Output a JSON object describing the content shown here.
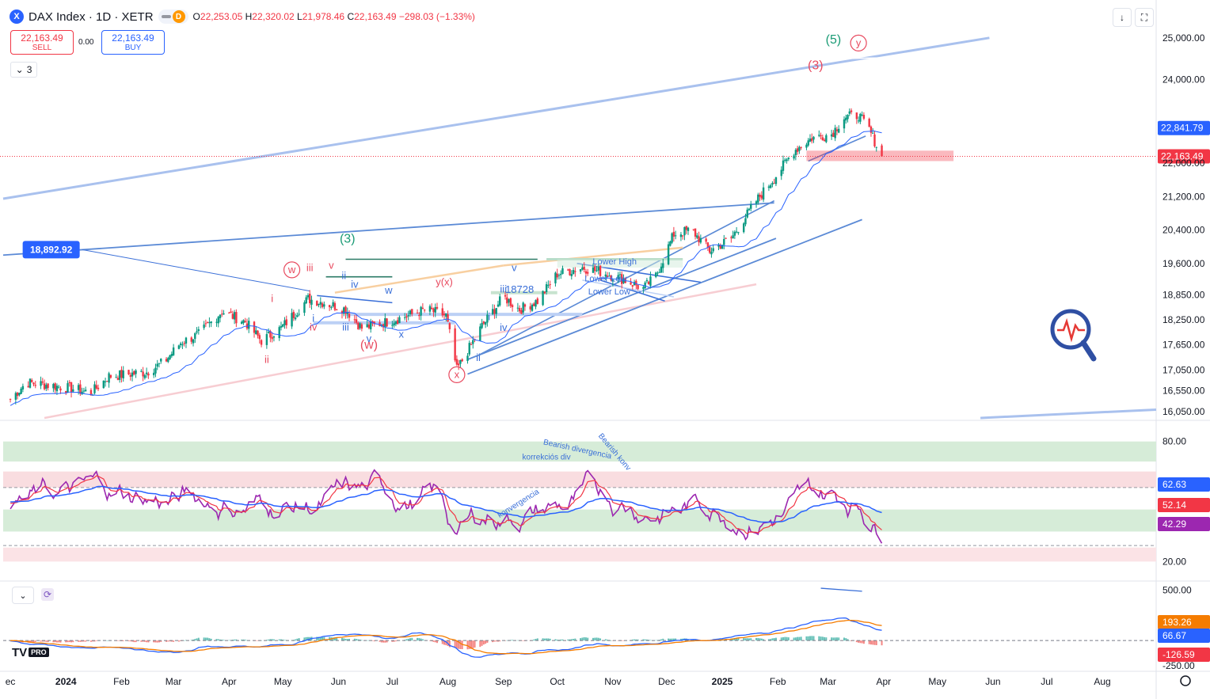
{
  "header": {
    "logo_letter": "X",
    "title": "DAX Index · 1D · XETR",
    "badge_letter": "D",
    "open_key": "O",
    "open": "22,253.05",
    "high_key": "H",
    "high": "22,320.02",
    "low_key": "L",
    "low": "21,978.46",
    "close_key": "C",
    "close": "22,163.49",
    "change": "−298.03 (−1.33%)"
  },
  "trade": {
    "sell_price": "22,163.49",
    "sell_label": "SELL",
    "spread": "0.00",
    "buy_price": "22,163.49",
    "buy_label": "BUY"
  },
  "indicator_count": "3",
  "colors": {
    "up": "#089981",
    "down": "#f23645",
    "channel": "#5b8ad6",
    "rsi": "#9c27b0",
    "rsi_ma": "#f23645",
    "macd_line": "#2962ff",
    "macd_signal": "#f57c00",
    "wave_red": "#e84a5f",
    "wave_green": "#1a9b75",
    "wave_blue": "#3a6fd8"
  },
  "chart_data": [
    {
      "type": "line",
      "series_style": "candlestick",
      "x_ticks": [
        "ec",
        "2024",
        "Feb",
        "Mar",
        "Apr",
        "May",
        "Jun",
        "Jul",
        "Aug",
        "Sep",
        "Oct",
        "Nov",
        "Dec",
        "2025",
        "Feb",
        "Mar",
        "Apr",
        "May",
        "Jun",
        "Jul",
        "Aug"
      ],
      "y_ticks": [
        "25,000.00",
        "24,000.00",
        "22,000.00",
        "21,200.00",
        "20,400.00",
        "19,600.00",
        "18,850.00",
        "18,250.00",
        "17,650.00",
        "17,050.00",
        "16,550.00",
        "16,050.00"
      ],
      "ylim": [
        15900,
        25300
      ],
      "price_path": [
        [
          "2023-12-01",
          16350
        ],
        [
          "2023-12-10",
          16750
        ],
        [
          "2023-12-20",
          16700
        ],
        [
          "2024-01-05",
          16600
        ],
        [
          "2024-01-15",
          16500
        ],
        [
          "2024-01-25",
          16900
        ],
        [
          "2024-02-05",
          16950
        ],
        [
          "2024-02-15",
          17000
        ],
        [
          "2024-02-25",
          17250
        ],
        [
          "2024-03-05",
          17700
        ],
        [
          "2024-03-15",
          17900
        ],
        [
          "2024-03-28",
          18450
        ],
        [
          "2024-04-10",
          18200
        ],
        [
          "2024-04-19",
          17750
        ],
        [
          "2024-04-30",
          18050
        ],
        [
          "2024-05-15",
          18750
        ],
        [
          "2024-05-25",
          18650
        ],
        [
          "2024-06-05",
          18500
        ],
        [
          "2024-06-14",
          18050
        ],
        [
          "2024-06-28",
          18200
        ],
        [
          "2024-07-10",
          18350
        ],
        [
          "2024-07-20",
          18500
        ],
        [
          "2024-07-31",
          18350
        ],
        [
          "2024-08-06",
          17050
        ],
        [
          "2024-08-20",
          18100
        ],
        [
          "2024-09-01",
          18800
        ],
        [
          "2024-09-10",
          18500
        ],
        [
          "2024-09-20",
          18700
        ],
        [
          "2024-10-01",
          19350
        ],
        [
          "2024-10-15",
          19500
        ],
        [
          "2024-10-25",
          19400
        ],
        [
          "2024-11-05",
          19250
        ],
        [
          "2024-11-18",
          19000
        ],
        [
          "2024-11-25",
          19300
        ],
        [
          "2024-12-05",
          20300
        ],
        [
          "2024-12-15",
          20400
        ],
        [
          "2024-12-25",
          19900
        ],
        [
          "2025-01-06",
          20200
        ],
        [
          "2025-01-20",
          21100
        ],
        [
          "2025-01-31",
          21700
        ],
        [
          "2025-02-10",
          22300
        ],
        [
          "2025-02-20",
          22600
        ],
        [
          "2025-03-03",
          22700
        ],
        [
          "2025-03-10",
          23100
        ],
        [
          "2025-03-18",
          23150
        ],
        [
          "2025-03-24",
          22800
        ],
        [
          "2025-03-31",
          22163
        ]
      ],
      "annotations": [
        {
          "text": "(5)",
          "date": "2025-03-04",
          "price": 24860,
          "color": "green"
        },
        {
          "text": "y",
          "date": "2025-03-18",
          "price": 24800,
          "color": "red",
          "circle": true
        },
        {
          "text": "(3)",
          "date": "2025-02-22",
          "price": 24250,
          "color": "red"
        },
        {
          "text": "(3)",
          "date": "2024-06-06",
          "price": 20100,
          "color": "green"
        },
        {
          "text": "w",
          "date": "2024-05-06",
          "price": 19370,
          "color": "red",
          "circle": true
        },
        {
          "text": "iii",
          "date": "2024-05-16",
          "price": 19420,
          "color": "red"
        },
        {
          "text": "v",
          "date": "2024-05-28",
          "price": 19470,
          "color": "red"
        },
        {
          "text": "ii",
          "date": "2024-06-04",
          "price": 19230,
          "color": "blue"
        },
        {
          "text": "iv",
          "date": "2024-06-10",
          "price": 19020,
          "color": "blue"
        },
        {
          "text": "w",
          "date": "2024-06-29",
          "price": 18880,
          "color": "blue"
        },
        {
          "text": "y(x)",
          "date": "2024-07-30",
          "price": 19070,
          "color": "red"
        },
        {
          "text": "v",
          "date": "2024-09-07",
          "price": 19420,
          "color": "blue"
        },
        {
          "text": "iii",
          "date": "2024-09-01",
          "price": 18900,
          "color": "blue"
        },
        {
          "text": "i",
          "date": "2024-04-25",
          "price": 18680,
          "color": "red"
        },
        {
          "text": "i",
          "date": "2024-05-18",
          "price": 18200,
          "color": "blue"
        },
        {
          "text": "iv",
          "date": "2024-05-18",
          "price": 17990,
          "color": "red"
        },
        {
          "text": "iii",
          "date": "2024-06-05",
          "price": 17990,
          "color": "blue"
        },
        {
          "text": "v",
          "date": "2024-06-18",
          "price": 17720,
          "color": "blue"
        },
        {
          "text": "(w)",
          "date": "2024-06-18",
          "price": 17560,
          "color": "red"
        },
        {
          "text": "x",
          "date": "2024-07-06",
          "price": 17820,
          "color": "blue"
        },
        {
          "text": "ii",
          "date": "2024-04-22",
          "price": 17220,
          "color": "red"
        },
        {
          "text": "i",
          "date": "2024-08-24",
          "price": 18240,
          "color": "blue"
        },
        {
          "text": "iv",
          "date": "2024-09-01",
          "price": 17980,
          "color": "blue"
        },
        {
          "text": "ii",
          "date": "2024-08-18",
          "price": 17260,
          "color": "blue"
        },
        {
          "text": "x",
          "date": "2024-08-06",
          "price": 16860,
          "color": "red",
          "circle": true
        },
        {
          "text": "18728",
          "date": "2024-09-10",
          "price": 18890,
          "color": "blue"
        },
        {
          "text": "Lower High",
          "date": "2024-11-02",
          "price": 19580,
          "color": "blue"
        },
        {
          "text": "Lower Low",
          "date": "2024-10-28",
          "price": 19170,
          "color": "blue"
        },
        {
          "text": "Lower Low",
          "date": "2024-10-30",
          "price": 18860,
          "color": "blue"
        }
      ],
      "price_labels": [
        {
          "text": "18,892.92",
          "date": "2024-01-10",
          "price": 19930,
          "side": "left"
        },
        {
          "text": "22,841.79",
          "price": 22841.79,
          "side": "axis",
          "color": "#2962ff"
        },
        {
          "text": "22,163.49",
          "price": 22163.49,
          "side": "axis",
          "color": "#f23645"
        }
      ]
    },
    {
      "type": "line",
      "name": "RSI",
      "y_ticks": [
        "80.00",
        "20.00"
      ],
      "ylim": [
        15,
        87
      ],
      "bands": [
        [
          70,
          80
        ],
        [
          57,
          65
        ],
        [
          35,
          46
        ]
      ],
      "last_values": [
        {
          "text": "62.63",
          "color": "#2962ff"
        },
        {
          "text": "52.14",
          "color": "#f23645"
        },
        {
          "text": "42.29",
          "color": "#9c27b0"
        }
      ],
      "annotations": [
        "Bearish divergencia",
        "korrekciós div",
        "konvergencia",
        "Bearish konv"
      ]
    },
    {
      "type": "line",
      "name": "MACD",
      "y_ticks": [
        "500.00",
        "-250.00"
      ],
      "ylim": [
        -290,
        560
      ],
      "last_values": [
        {
          "text": "193.26",
          "color": "#f57c00"
        },
        {
          "text": "66.67",
          "color": "#2962ff"
        },
        {
          "text": "-126.59",
          "color": "#f23645"
        }
      ]
    }
  ]
}
